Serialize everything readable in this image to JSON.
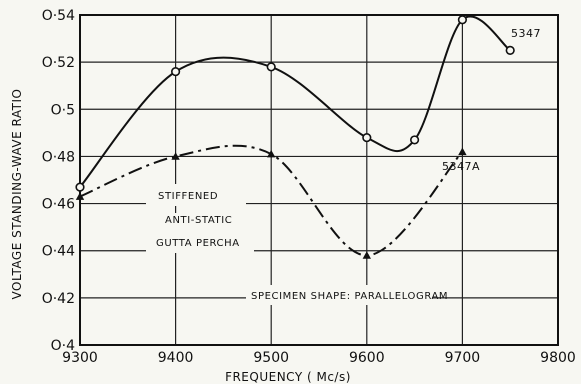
{
  "chart_data": {
    "type": "line",
    "title": "",
    "xlabel": "FREQUENCY ( Mc/s)",
    "ylabel": "VOLTAGE STANDING-WAVE RATIO",
    "xlim": [
      9300,
      9800
    ],
    "ylim": [
      0.4,
      0.54
    ],
    "x_ticks": [
      9300,
      9400,
      9500,
      9600,
      9700,
      9800
    ],
    "x_tick_labels": [
      "9300",
      "9400",
      "9500",
      "9600",
      "9700",
      "9800"
    ],
    "y_ticks": [
      0.4,
      0.42,
      0.44,
      0.46,
      0.48,
      0.5,
      0.52,
      0.54
    ],
    "y_tick_labels": [
      "O·4",
      "O·42",
      "O·44",
      "O·46",
      "O·48",
      "O·5",
      "O·52",
      "O·54"
    ],
    "grid": true,
    "series": [
      {
        "name": "5347",
        "style": "solid",
        "x": [
          9300,
          9400,
          9500,
          9600,
          9650,
          9700,
          9750
        ],
        "y": [
          0.467,
          0.516,
          0.518,
          0.488,
          0.487,
          0.538,
          0.525
        ]
      },
      {
        "name": "5347A",
        "style": "dash-dot",
        "x": [
          9300,
          9400,
          9500,
          9600,
          9700
        ],
        "y": [
          0.463,
          0.48,
          0.481,
          0.438,
          0.482
        ]
      }
    ],
    "annotations": [
      "STIFFENED",
      "ANTI-STATIC",
      "GUTTA PERCHA",
      "SPECIMEN SHAPE: PARALLELOGRAM"
    ],
    "colors": {
      "ink": "#111111",
      "background": "#f7f7f2",
      "grid": "#222222"
    }
  }
}
